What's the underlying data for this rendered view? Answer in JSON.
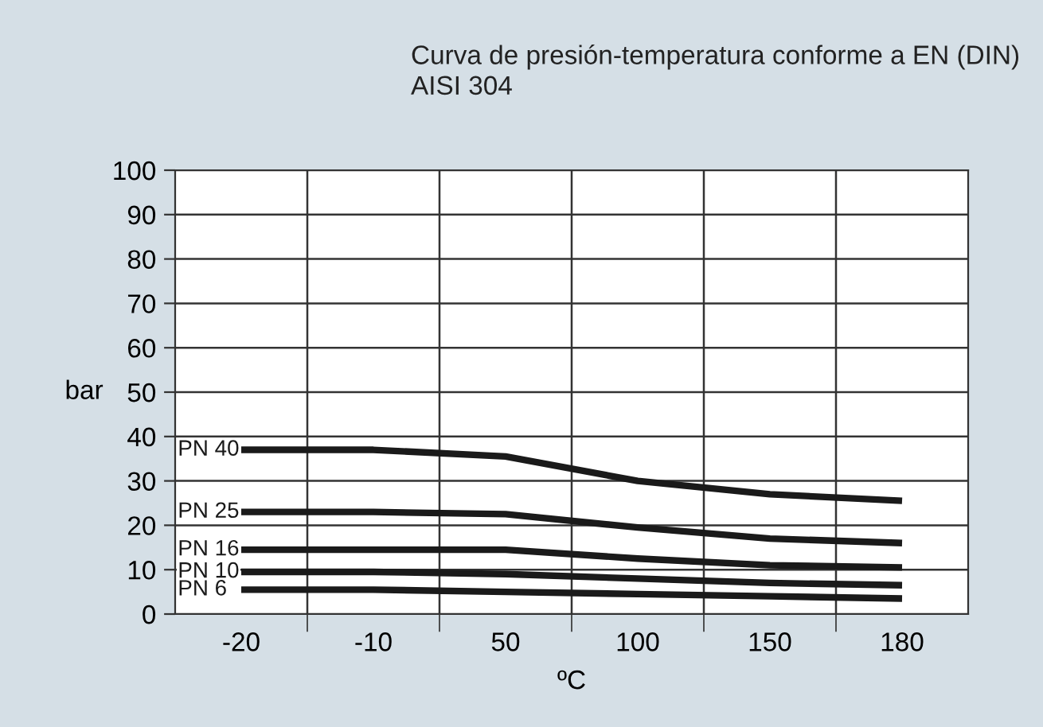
{
  "chart_data": {
    "type": "line",
    "title": "Curva de presión-temperatura conforme a EN (DIN)\nAISI 304",
    "xlabel": "ºC",
    "ylabel": "bar",
    "categories": [
      "-20",
      "-10",
      "50",
      "100",
      "150",
      "180"
    ],
    "series": [
      {
        "name": "PN 40",
        "color": "#1a1a1a",
        "values": [
          37,
          37,
          35.5,
          30,
          27,
          25.5
        ]
      },
      {
        "name": "PN 25",
        "color": "#1a1a1a",
        "values": [
          23,
          23,
          22.5,
          19.5,
          17,
          16
        ]
      },
      {
        "name": "PN 16",
        "color": "#1a1a1a",
        "values": [
          14.5,
          14.5,
          14.5,
          12.5,
          11,
          10.5
        ]
      },
      {
        "name": "PN 10",
        "color": "#1a1a1a",
        "values": [
          9.5,
          9.5,
          9,
          8,
          7,
          6.5
        ]
      },
      {
        "name": "PN 6",
        "color": "#1a1a1a",
        "values": [
          5.5,
          5.5,
          5,
          4.5,
          4,
          3.5
        ]
      }
    ],
    "ylim": [
      0,
      100
    ],
    "yticks": [
      0,
      10,
      20,
      30,
      40,
      50,
      60,
      70,
      80,
      90,
      100
    ],
    "grid": true,
    "legend": false,
    "marker": "none",
    "line_style": "solid"
  }
}
